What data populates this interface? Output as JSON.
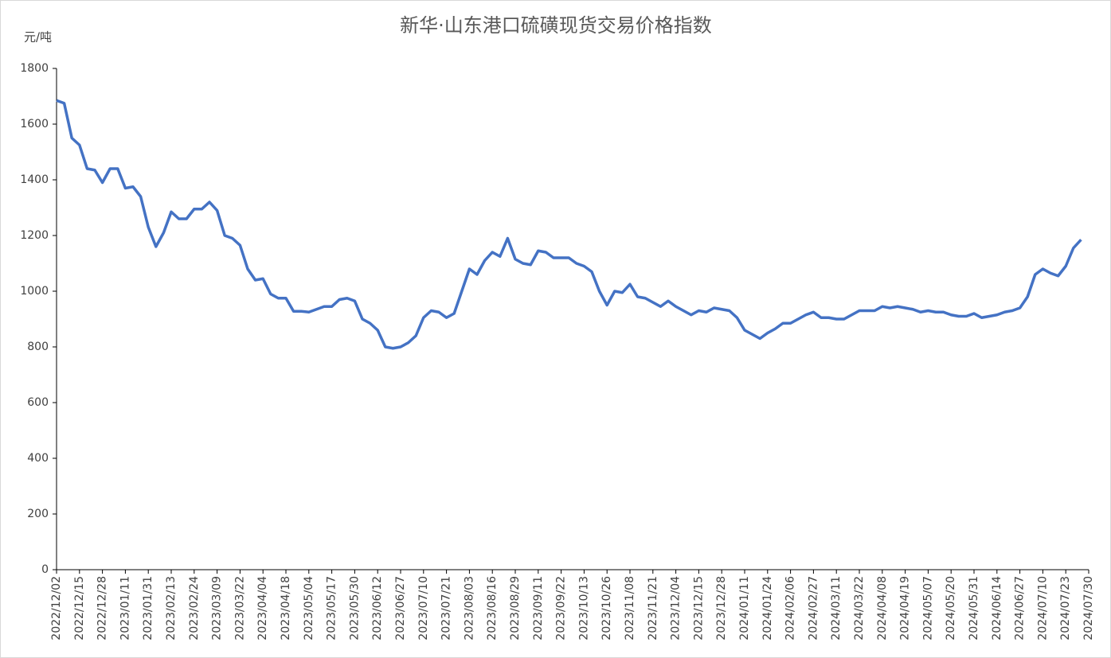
{
  "chart_data": {
    "type": "line",
    "title": "新华·山东港口硫磺现货交易价格指数",
    "y_label": "元/吨",
    "categories": [
      "2022/12/02",
      null,
      null,
      "2022/12/15",
      null,
      null,
      "2022/12/28",
      null,
      null,
      "2023/01/11",
      null,
      null,
      "2023/01/31",
      null,
      null,
      "2023/02/13",
      null,
      null,
      "2023/02/24",
      null,
      null,
      "2023/03/09",
      null,
      null,
      "2023/03/22",
      null,
      null,
      "2023/04/04",
      null,
      null,
      "2023/04/18",
      null,
      null,
      "2023/05/04",
      null,
      null,
      "2023/05/17",
      null,
      null,
      "2023/05/30",
      null,
      null,
      "2023/06/12",
      null,
      null,
      "2023/06/27",
      null,
      null,
      "2023/07/10",
      null,
      null,
      "2023/07/21",
      null,
      null,
      "2023/08/03",
      null,
      null,
      "2023/08/16",
      null,
      null,
      "2023/08/29",
      null,
      null,
      "2023/09/11",
      null,
      null,
      "2023/09/22",
      null,
      null,
      "2023/10/13",
      null,
      null,
      "2023/10/26",
      null,
      null,
      "2023/11/08",
      null,
      null,
      "2023/11/21",
      null,
      null,
      "2023/12/04",
      null,
      null,
      "2023/12/15",
      null,
      null,
      "2023/12/28",
      null,
      null,
      "2024/01/11",
      null,
      null,
      "2024/01/24",
      null,
      null,
      "2024/02/06",
      null,
      null,
      "2024/02/27",
      null,
      null,
      "2024/03/11",
      null,
      null,
      "2024/03/22",
      null,
      null,
      "2024/04/08",
      null,
      null,
      "2024/04/19",
      null,
      null,
      "2024/05/07",
      null,
      null,
      "2024/05/20",
      null,
      null,
      "2024/05/31",
      null,
      null,
      "2024/06/14",
      null,
      null,
      "2024/06/27",
      null,
      null,
      "2024/07/10",
      null,
      null,
      "2024/07/23",
      null,
      null,
      "2024/07/30"
    ],
    "series": [
      {
        "name": "新华·山东港口硫磺现货交易价格指数",
        "color": "#4472c4",
        "values": [
          1685,
          1675,
          1550,
          1525,
          1440,
          1435,
          1390,
          1440,
          1440,
          1370,
          1375,
          1340,
          1230,
          1160,
          1210,
          1285,
          1260,
          1260,
          1295,
          1295,
          1320,
          1290,
          1200,
          1190,
          1165,
          1080,
          1040,
          1045,
          990,
          975,
          975,
          928,
          928,
          925,
          935,
          945,
          945,
          970,
          975,
          965,
          900,
          885,
          860,
          800,
          795,
          800,
          815,
          840,
          905,
          930,
          925,
          905,
          920,
          1000,
          1080,
          1060,
          1110,
          1140,
          1125,
          1190,
          1115,
          1100,
          1095,
          1145,
          1140,
          1120,
          1120,
          1120,
          1100,
          1090,
          1070,
          1000,
          950,
          1000,
          995,
          1025,
          980,
          975,
          960,
          945,
          965,
          945,
          930,
          915,
          930,
          925,
          940,
          935,
          930,
          905,
          860,
          845,
          830,
          850,
          865,
          885,
          885,
          900,
          915,
          925,
          905,
          905,
          900,
          900,
          915,
          930,
          930,
          930,
          945,
          940,
          945,
          940,
          935,
          925,
          930,
          925,
          925,
          915,
          910,
          910,
          920,
          905,
          910,
          915,
          925,
          930,
          940,
          980,
          1060,
          1080,
          1065,
          1055,
          1090,
          1155,
          1185,
          null
        ]
      }
    ],
    "ylim": [
      0,
      1800
    ],
    "yticks": [
      0,
      200,
      400,
      600,
      800,
      1000,
      1200,
      1400,
      1600,
      1800
    ]
  }
}
